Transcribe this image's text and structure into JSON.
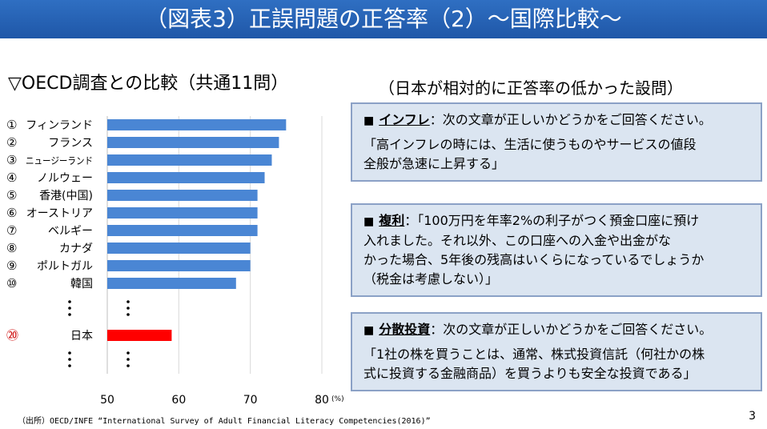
{
  "header": {
    "title": "（図表3）正誤問題の正答率（2）〜国際比較〜"
  },
  "left_title": "▽OECD調査との比較（共通11問）",
  "right_title": "（日本が相対的に正答率の低かった設問）",
  "chart_data": {
    "type": "bar",
    "orientation": "horizontal",
    "categories": [
      {
        "rank": "①",
        "name": "フィンランド",
        "value": 75
      },
      {
        "rank": "②",
        "name": "フランス",
        "value": 74
      },
      {
        "rank": "③",
        "name": "ニュージーランド",
        "value": 73
      },
      {
        "rank": "④",
        "name": "ノルウェー",
        "value": 72
      },
      {
        "rank": "⑤",
        "name": "香港(中国)",
        "value": 71
      },
      {
        "rank": "⑥",
        "name": "オーストリア",
        "value": 71
      },
      {
        "rank": "⑦",
        "name": "ベルギー",
        "value": 71
      },
      {
        "rank": "⑧",
        "name": "カナダ",
        "value": 70
      },
      {
        "rank": "⑨",
        "name": "ポルトガル",
        "value": 70
      },
      {
        "rank": "⑩",
        "name": "韓国",
        "value": 68
      },
      {
        "rank": "⑳",
        "name": "日本",
        "value": 59,
        "highlight": true
      }
    ],
    "xlim": [
      50,
      80
    ],
    "xticks": [
      50,
      60,
      70,
      80
    ],
    "unit": "(%)",
    "bar_color": "#4a86d4",
    "highlight_color": "#ff0000",
    "rank_highlight_color": "#cc0000",
    "grid": true
  },
  "questions": [
    {
      "term": "インフレ",
      "rest": "：次の文章が正しいかどうかをご回答ください。",
      "body": "「高インフレの時には、生活に使うものやサービスの値段\n全般が急速に上昇する」"
    },
    {
      "term": "複利",
      "rest": "：「100万円を年率2%の利子がつく預金口座に預け",
      "body": "入れました。それ以外、この口座への入金や出金がな\nかった場合、5年後の残高はいくらになっているでしょうか\n（税金は考慮しない）」"
    },
    {
      "term": "分散投資",
      "rest": "：次の文章が正しいかどうかをご回答ください。",
      "body": "「1社の株を買うことは、通常、株式投資信託（何社かの株\n式に投資する金融商品）を買うよりも安全な投資である」"
    }
  ],
  "source": "（出所）OECD/INFE “International Survey of Adult Financial Literacy Competencies(2016)”",
  "page_number": "3"
}
